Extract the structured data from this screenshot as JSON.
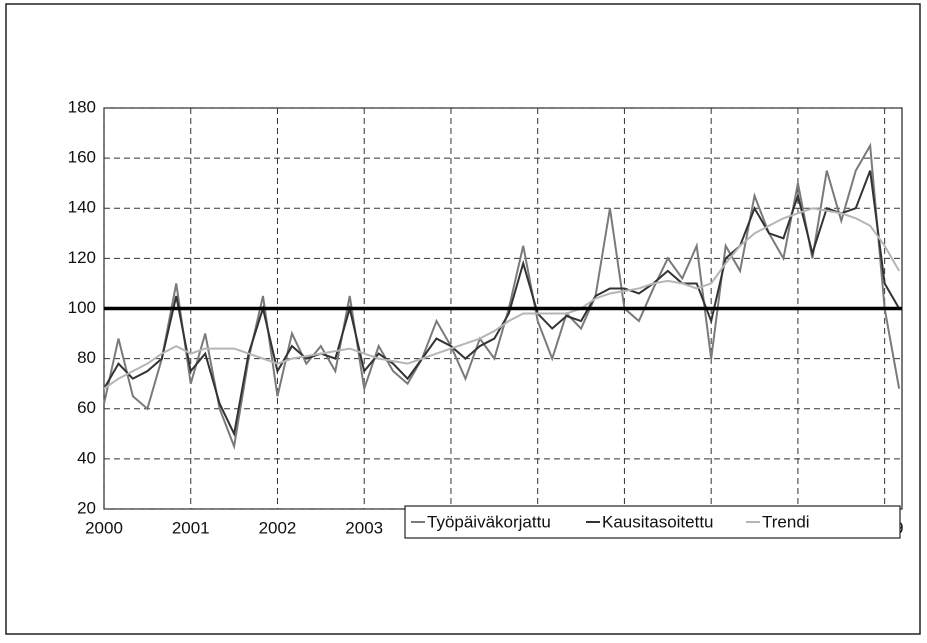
{
  "chart_data": {
    "type": "line",
    "x": [
      2000,
      2000.167,
      2000.333,
      2000.5,
      2000.667,
      2000.833,
      2001,
      2001.167,
      2001.333,
      2001.5,
      2001.667,
      2001.833,
      2002,
      2002.167,
      2002.333,
      2002.5,
      2002.667,
      2002.833,
      2003,
      2003.167,
      2003.333,
      2003.5,
      2003.667,
      2003.833,
      2004,
      2004.167,
      2004.333,
      2004.5,
      2004.667,
      2004.833,
      2005,
      2005.167,
      2005.333,
      2005.5,
      2005.667,
      2005.833,
      2006,
      2006.167,
      2006.333,
      2006.5,
      2006.667,
      2006.833,
      2007,
      2007.167,
      2007.333,
      2007.5,
      2007.667,
      2007.833,
      2008,
      2008.167,
      2008.333,
      2008.5,
      2008.667,
      2008.833,
      2009,
      2009.167
    ],
    "series": [
      {
        "name": "Työpäiväkorjattu",
        "color": "#7a7a7a",
        "values": [
          62,
          88,
          65,
          60,
          80,
          110,
          70,
          90,
          60,
          45,
          80,
          105,
          65,
          90,
          78,
          85,
          75,
          105,
          68,
          85,
          75,
          70,
          80,
          95,
          85,
          72,
          88,
          80,
          100,
          125,
          95,
          80,
          98,
          92,
          105,
          140,
          100,
          95,
          108,
          120,
          112,
          125,
          80,
          125,
          115,
          145,
          130,
          120,
          150,
          120,
          155,
          135,
          155,
          165,
          100,
          68
        ]
      },
      {
        "name": "Kausitasoitettu",
        "color": "#333333",
        "values": [
          68,
          78,
          72,
          75,
          80,
          105,
          75,
          82,
          62,
          50,
          82,
          100,
          75,
          85,
          80,
          82,
          80,
          100,
          75,
          82,
          78,
          72,
          80,
          88,
          85,
          80,
          85,
          88,
          98,
          118,
          98,
          92,
          97,
          95,
          105,
          108,
          108,
          106,
          110,
          115,
          110,
          110,
          95,
          120,
          125,
          140,
          130,
          128,
          145,
          122,
          140,
          138,
          140,
          155,
          110,
          100
        ]
      },
      {
        "name": "Trendi",
        "color": "#b5b5b5",
        "values": [
          68,
          72,
          75,
          78,
          82,
          85,
          82,
          84,
          84,
          84,
          82,
          80,
          78,
          80,
          81,
          82,
          83,
          84,
          82,
          80,
          79,
          78,
          80,
          82,
          84,
          86,
          88,
          91,
          95,
          98,
          98,
          98,
          98,
          100,
          104,
          106,
          107,
          108,
          110,
          111,
          110,
          108,
          110,
          118,
          125,
          130,
          133,
          136,
          138,
          140,
          139,
          138,
          136,
          133,
          125,
          115
        ]
      }
    ],
    "reference_line": 100,
    "xlim": [
      2000,
      2009.2
    ],
    "xticks": [
      2000,
      2001,
      2002,
      2003,
      2004,
      2005,
      2006,
      2007,
      2008,
      2009
    ],
    "ylim": [
      20,
      180
    ],
    "yticks": [
      20,
      40,
      60,
      80,
      100,
      120,
      140,
      160,
      180
    ],
    "grid": true
  }
}
